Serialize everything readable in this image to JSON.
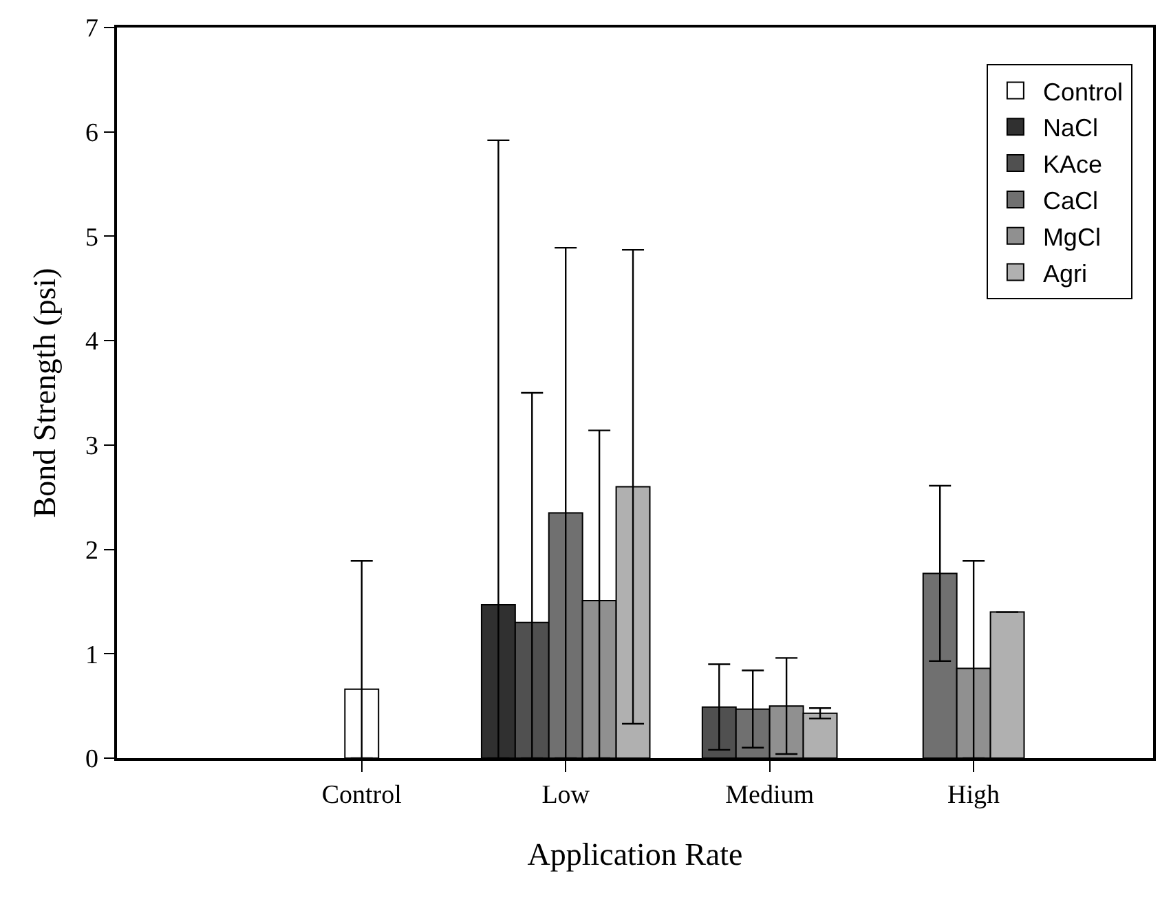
{
  "chart_data": {
    "type": "bar",
    "xlabel": "Application Rate",
    "ylabel": "Bond Strength (psi)",
    "categories": [
      "Control",
      "Low",
      "Medium",
      "High"
    ],
    "ylim": [
      0,
      7
    ],
    "yticks": [
      0,
      1,
      2,
      3,
      4,
      5,
      6,
      7
    ],
    "legend": "top right",
    "series": [
      {
        "name": "Control",
        "color": "#ffffff",
        "values": [
          0.66,
          null,
          null,
          null
        ],
        "errors": [
          [
            0,
            1.89
          ],
          null,
          null,
          null
        ]
      },
      {
        "name": "NaCl",
        "color": "#303030",
        "values": [
          null,
          1.47,
          null,
          null
        ],
        "errors": [
          null,
          [
            0,
            5.92
          ],
          null,
          null
        ]
      },
      {
        "name": "KAce",
        "color": "#505050",
        "values": [
          null,
          1.3,
          0.49,
          null
        ],
        "errors": [
          null,
          [
            0,
            3.5
          ],
          [
            0.08,
            0.9
          ],
          null
        ]
      },
      {
        "name": "CaCl",
        "color": "#707070",
        "values": [
          null,
          2.35,
          0.47,
          1.77
        ],
        "errors": [
          null,
          [
            0,
            4.89
          ],
          [
            0.1,
            0.84
          ],
          [
            0.93,
            2.61
          ]
        ]
      },
      {
        "name": "MgCl",
        "color": "#909090",
        "values": [
          null,
          1.51,
          0.5,
          0.86
        ],
        "errors": [
          null,
          [
            0,
            3.14
          ],
          [
            0.04,
            0.96
          ],
          [
            0,
            1.89
          ]
        ]
      },
      {
        "name": "Agri",
        "color": "#b0b0b0",
        "values": [
          null,
          2.6,
          0.43,
          1.4
        ],
        "errors": [
          null,
          [
            0.33,
            4.87
          ],
          [
            0.38,
            0.48
          ],
          null
        ]
      }
    ]
  }
}
